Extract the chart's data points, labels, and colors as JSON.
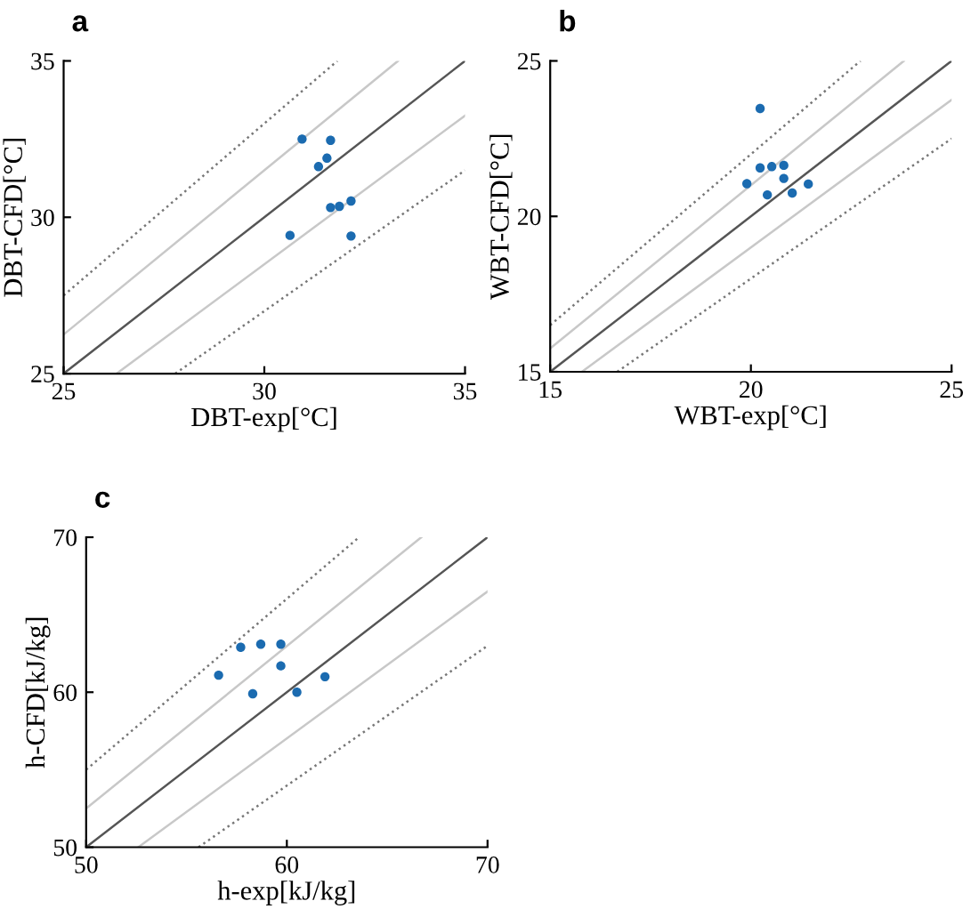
{
  "chart_data": [
    {
      "type": "scatter",
      "title": "a",
      "xlabel": "DBT-exp[°C]",
      "ylabel": "DBT-CFD[°C]",
      "xlim": [
        25,
        35
      ],
      "ylim": [
        25,
        35
      ],
      "xticks": [
        25,
        30,
        35
      ],
      "yticks": [
        25,
        30,
        35
      ],
      "grid": false,
      "series": [
        {
          "type": "line",
          "marker": "none",
          "color": "#555555",
          "line_style": "solid",
          "x": [
            25,
            35
          ],
          "values": [
            25,
            35
          ]
        },
        {
          "type": "line",
          "marker": "none",
          "color": "#c8c8c8",
          "line_style": "solid",
          "x": [
            25,
            33.33
          ],
          "values": [
            26.25,
            35
          ]
        },
        {
          "type": "line",
          "marker": "none",
          "color": "#c8c8c8",
          "line_style": "solid",
          "x": [
            26.32,
            35
          ],
          "values": [
            25,
            33.25
          ]
        },
        {
          "type": "line",
          "marker": "none",
          "color": "#777777",
          "line_style": "dotted",
          "x": [
            25,
            31.82
          ],
          "values": [
            27.5,
            35
          ]
        },
        {
          "type": "line",
          "marker": "none",
          "color": "#777777",
          "line_style": "dotted",
          "x": [
            27.78,
            35
          ],
          "values": [
            25,
            31.5
          ]
        },
        {
          "marker": "circle",
          "color": "#1b6bb0",
          "x": [
            30.94,
            31.65,
            31.56,
            31.35,
            31.65,
            31.87,
            32.16,
            30.64,
            32.16
          ],
          "values": [
            32.5,
            32.46,
            31.89,
            31.62,
            30.31,
            30.35,
            30.52,
            29.42,
            29.4
          ]
        }
      ]
    },
    {
      "type": "scatter",
      "title": "b",
      "xlabel": "WBT-exp[°C]",
      "ylabel": "WBT-CFD[°C]",
      "xlim": [
        15,
        25
      ],
      "ylim": [
        15,
        25
      ],
      "xticks": [
        15,
        20,
        25
      ],
      "yticks": [
        15,
        20,
        25
      ],
      "grid": false,
      "series": [
        {
          "type": "line",
          "marker": "none",
          "color": "#555555",
          "line_style": "solid",
          "x": [
            15,
            25
          ],
          "values": [
            15,
            25
          ]
        },
        {
          "type": "line",
          "marker": "none",
          "color": "#c8c8c8",
          "line_style": "solid",
          "x": [
            15,
            23.81
          ],
          "values": [
            15.75,
            25
          ]
        },
        {
          "type": "line",
          "marker": "none",
          "color": "#c8c8c8",
          "line_style": "solid",
          "x": [
            15.79,
            25
          ],
          "values": [
            15,
            23.75
          ]
        },
        {
          "type": "line",
          "marker": "none",
          "color": "#777777",
          "line_style": "dotted",
          "x": [
            15,
            22.73
          ],
          "values": [
            16.5,
            25
          ]
        },
        {
          "type": "line",
          "marker": "none",
          "color": "#777777",
          "line_style": "dotted",
          "x": [
            16.67,
            25
          ],
          "values": [
            15,
            22.5
          ]
        },
        {
          "marker": "circle",
          "color": "#1b6bb0",
          "x": [
            20.23,
            19.9,
            20.23,
            20.52,
            20.82,
            20.82,
            20.41,
            21.03,
            21.43
          ],
          "values": [
            23.47,
            21.05,
            21.56,
            21.6,
            21.64,
            21.22,
            20.69,
            20.75,
            21.04
          ]
        }
      ]
    },
    {
      "type": "scatter",
      "title": "c",
      "xlabel": "h-exp[kJ/kg]",
      "ylabel": "h-CFD[kJ/kg]",
      "xlim": [
        50,
        70
      ],
      "ylim": [
        50,
        70
      ],
      "xticks": [
        50,
        60,
        70
      ],
      "yticks": [
        50,
        60,
        70
      ],
      "grid": false,
      "series": [
        {
          "type": "line",
          "marker": "none",
          "color": "#555555",
          "line_style": "solid",
          "x": [
            50,
            70
          ],
          "values": [
            50,
            70
          ]
        },
        {
          "type": "line",
          "marker": "none",
          "color": "#c8c8c8",
          "line_style": "solid",
          "x": [
            50,
            66.7
          ],
          "values": [
            52.5,
            70
          ]
        },
        {
          "type": "line",
          "marker": "none",
          "color": "#c8c8c8",
          "line_style": "solid",
          "x": [
            52.6,
            70
          ],
          "values": [
            50,
            66.5
          ]
        },
        {
          "type": "line",
          "marker": "none",
          "color": "#777777",
          "line_style": "dotted",
          "x": [
            50,
            63.6
          ],
          "values": [
            55,
            70
          ]
        },
        {
          "type": "line",
          "marker": "none",
          "color": "#777777",
          "line_style": "dotted",
          "x": [
            55.6,
            70
          ],
          "values": [
            50,
            63
          ]
        },
        {
          "marker": "circle",
          "color": "#1b6bb0",
          "x": [
            56.6,
            57.7,
            58.7,
            59.7,
            59.7,
            58.3,
            60.5,
            61.9
          ],
          "values": [
            61.1,
            62.9,
            63.1,
            63.1,
            61.7,
            59.9,
            60.0,
            61.0
          ]
        }
      ]
    }
  ]
}
